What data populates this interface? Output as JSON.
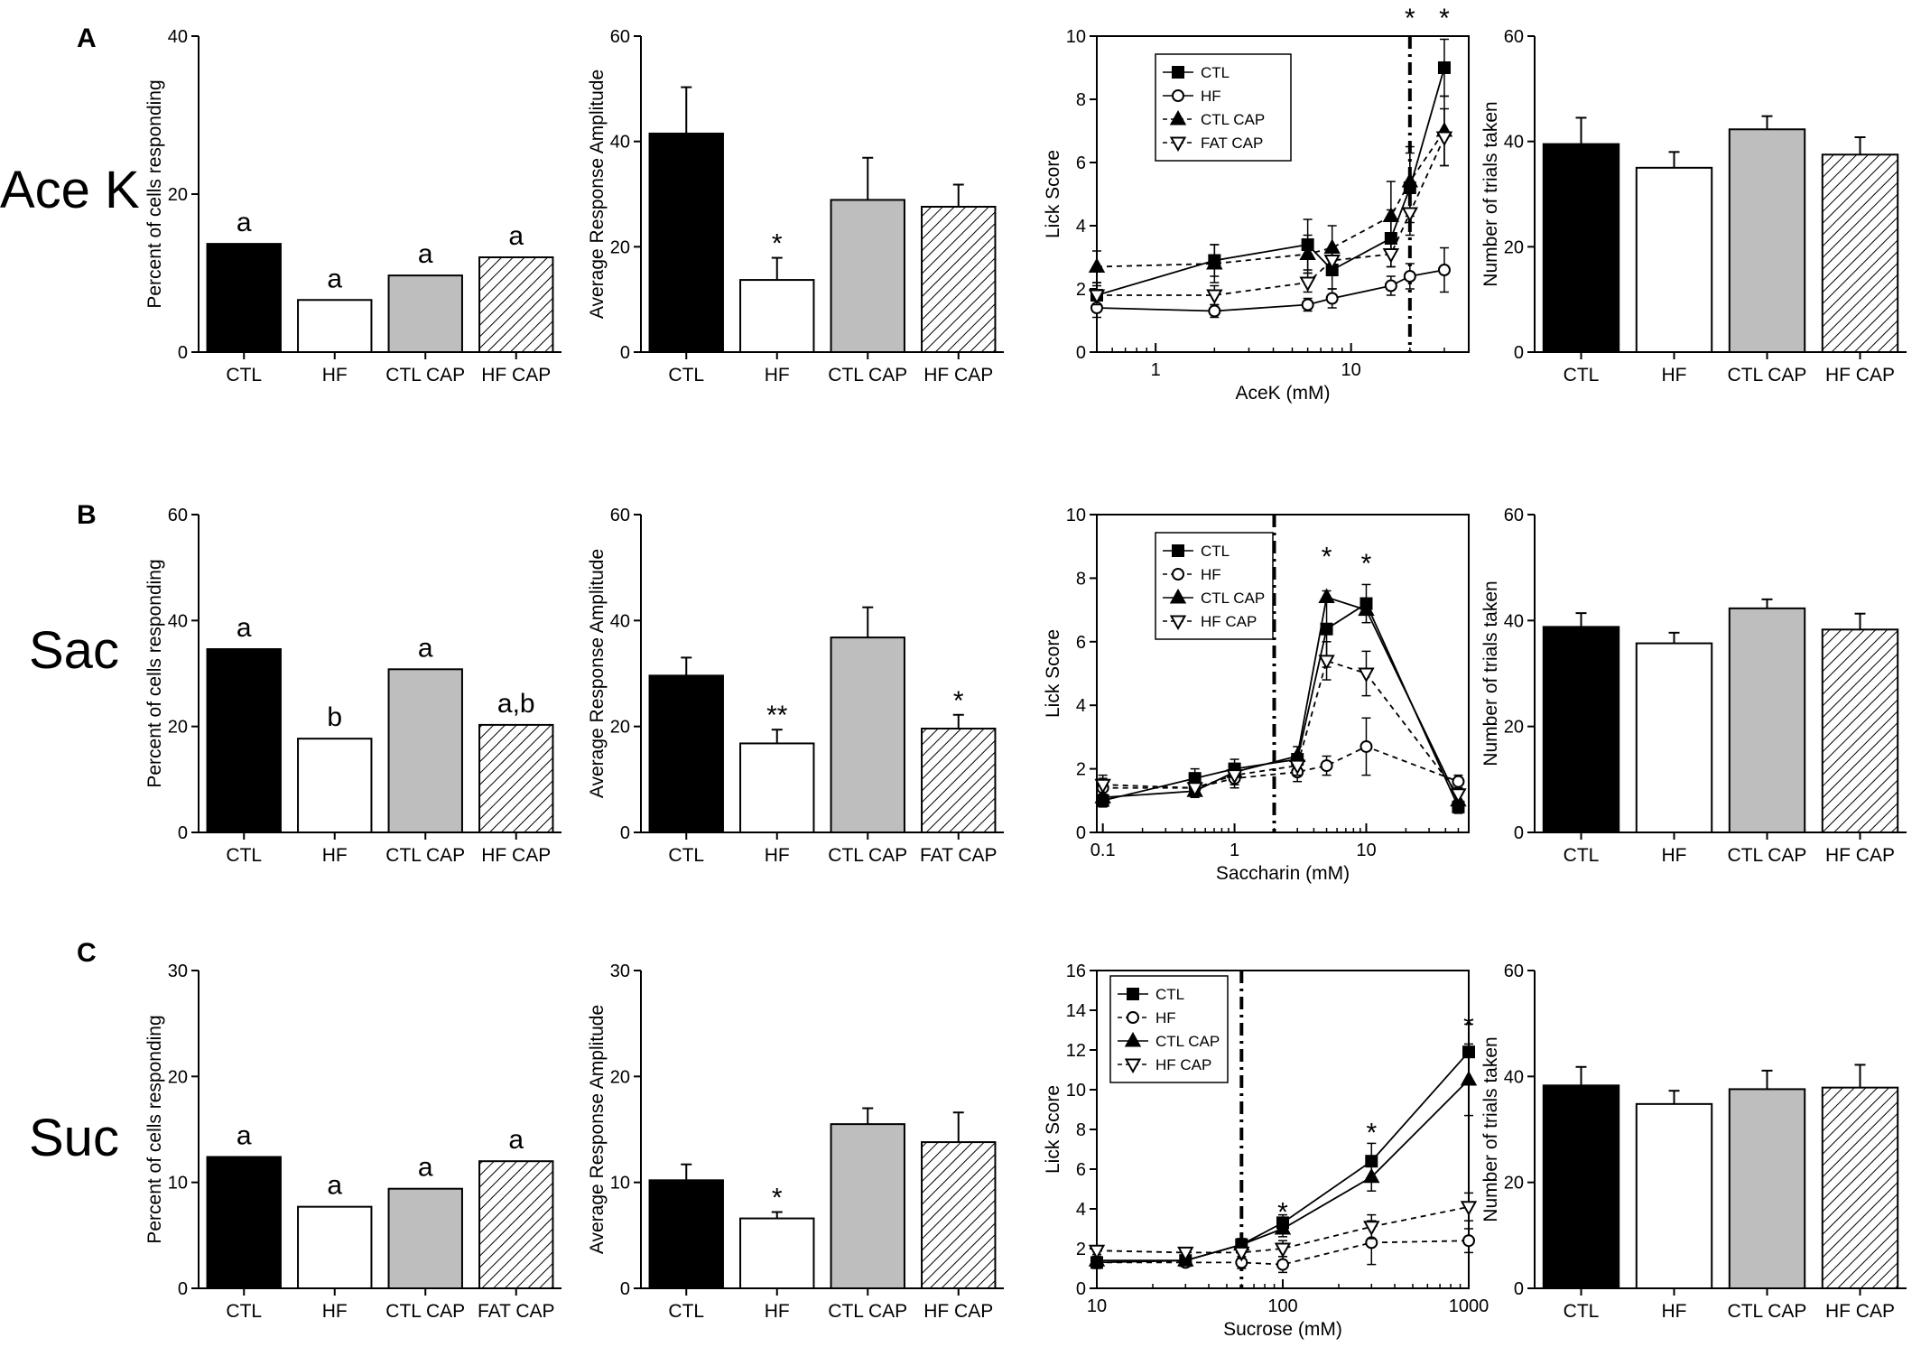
{
  "figure": {
    "rows": [
      {
        "panel_letter": "A",
        "row_label": "Ace K"
      },
      {
        "panel_letter": "B",
        "row_label": "Sac"
      },
      {
        "panel_letter": "C",
        "row_label": "Suc"
      }
    ]
  },
  "chart_data": [
    {
      "id": "A1",
      "type": "bar",
      "row": 0,
      "col": 0,
      "ylabel": "Percent of cells responding",
      "ylim": [
        0,
        40
      ],
      "yticks": [
        0,
        20,
        40
      ],
      "categories": [
        "CTL",
        "HF",
        "CTL CAP",
        "HF CAP"
      ],
      "values": [
        13.7,
        6.6,
        9.7,
        12
      ],
      "errors": null,
      "annotations": [
        "a",
        "a",
        "a",
        "a"
      ],
      "fills": [
        "black",
        "white",
        "gray",
        "hatch"
      ]
    },
    {
      "id": "A2",
      "type": "bar",
      "row": 0,
      "col": 1,
      "ylabel": "Average Response Amplitude",
      "ylim": [
        0,
        60
      ],
      "yticks": [
        0,
        20,
        40,
        60
      ],
      "categories": [
        "CTL",
        "HF",
        "CTL CAP",
        "HF CAP"
      ],
      "values": [
        41.5,
        13.7,
        28.9,
        27.6
      ],
      "errors": [
        8.8,
        4.2,
        8,
        4.2
      ],
      "annotations": [
        "",
        "*",
        "",
        ""
      ],
      "fills": [
        "black",
        "white",
        "gray",
        "hatch"
      ]
    },
    {
      "id": "A3",
      "type": "line",
      "row": 0,
      "col": 2,
      "xscale": "log",
      "xlim": [
        0.5,
        40
      ],
      "xticks": [
        1,
        10
      ],
      "xlabel": "AceK (mM)",
      "ylabel": "Lick Score",
      "ylim": [
        0,
        10
      ],
      "yticks": [
        0,
        2,
        4,
        6,
        8,
        10
      ],
      "vline": 20,
      "stars": [
        {
          "x": 20,
          "y": 10.8
        },
        {
          "x": 30,
          "y": 10.8
        }
      ],
      "series": [
        {
          "name": "CTL",
          "marker": "square",
          "filled": true,
          "dashed": false,
          "x": [
            0.5,
            2,
            6,
            8,
            16,
            20,
            30
          ],
          "y": [
            1.8,
            2.9,
            3.4,
            2.6,
            3.6,
            5.2,
            9
          ],
          "err": [
            0.4,
            0.5,
            0.8,
            0.6,
            0.9,
            1.1,
            0.9
          ]
        },
        {
          "name": "HF",
          "marker": "circle",
          "filled": false,
          "dashed": false,
          "x": [
            0.5,
            2,
            6,
            8,
            16,
            20,
            30
          ],
          "y": [
            1.4,
            1.3,
            1.5,
            1.7,
            2.1,
            2.4,
            2.6
          ],
          "err": [
            0.3,
            0.2,
            0.2,
            0.3,
            0.3,
            0.4,
            0.7
          ]
        },
        {
          "name": "CTL CAP",
          "marker": "triangle",
          "filled": true,
          "dashed": true,
          "x": [
            0.5,
            2,
            6,
            8,
            16,
            20,
            30
          ],
          "y": [
            2.7,
            2.8,
            3.1,
            3.3,
            4.3,
            5.4,
            7
          ],
          "err": [
            0.5,
            0.6,
            0.6,
            0.7,
            1.1,
            1.1,
            1.1
          ]
        },
        {
          "name": "FAT CAP",
          "marker": "triangle-down",
          "filled": false,
          "dashed": true,
          "x": [
            0.5,
            2,
            6,
            8,
            16,
            20,
            30
          ],
          "y": [
            1.8,
            1.8,
            2.2,
            2.9,
            3.1,
            4.4,
            6.8
          ],
          "err": [
            0.3,
            0.3,
            0.3,
            0.3,
            0.4,
            0.7,
            0.9
          ]
        }
      ]
    },
    {
      "id": "A4",
      "type": "bar",
      "row": 0,
      "col": 3,
      "ylabel": "Number of trials taken",
      "ylim": [
        0,
        60
      ],
      "yticks": [
        0,
        20,
        40,
        60
      ],
      "categories": [
        "CTL",
        "HF",
        "CTL CAP",
        "HF CAP"
      ],
      "values": [
        39.5,
        35,
        42.3,
        37.5
      ],
      "errors": [
        5,
        3,
        2.5,
        3.3
      ],
      "annotations": [
        "",
        "",
        "",
        ""
      ],
      "fills": [
        "black",
        "white",
        "gray",
        "hatch"
      ]
    },
    {
      "id": "B1",
      "type": "bar",
      "row": 1,
      "col": 0,
      "ylabel": "Percent of cells responding",
      "ylim": [
        0,
        60
      ],
      "yticks": [
        0,
        20,
        40,
        60
      ],
      "categories": [
        "CTL",
        "HF",
        "CTL CAP",
        "HF CAP"
      ],
      "values": [
        34.6,
        17.7,
        30.8,
        20.3
      ],
      "errors": null,
      "annotations": [
        "a",
        "b",
        "a",
        "a,b"
      ],
      "fills": [
        "black",
        "white",
        "gray",
        "hatch"
      ]
    },
    {
      "id": "B2",
      "type": "bar",
      "row": 1,
      "col": 1,
      "ylabel": "Average Response Amplitude",
      "ylim": [
        0,
        60
      ],
      "yticks": [
        0,
        20,
        40,
        60
      ],
      "categories": [
        "CTL",
        "HF",
        "CTL CAP",
        "FAT CAP"
      ],
      "values": [
        29.6,
        16.8,
        36.8,
        19.6
      ],
      "errors": [
        3.4,
        2.6,
        5.7,
        2.6
      ],
      "annotations": [
        "",
        "**",
        "",
        "*"
      ],
      "fills": [
        "black",
        "white",
        "gray",
        "hatch"
      ]
    },
    {
      "id": "B3",
      "type": "line",
      "row": 1,
      "col": 2,
      "xscale": "log",
      "xlim": [
        0.09,
        60
      ],
      "xticks": [
        0.1,
        1,
        10
      ],
      "xlabel": "Saccharin (mM)",
      "ylabel": "Lick Score",
      "ylim": [
        0,
        10
      ],
      "yticks": [
        0,
        2,
        4,
        6,
        8,
        10
      ],
      "vline": 2,
      "stars": [
        {
          "x": 5,
          "y": 8.9
        },
        {
          "x": 10,
          "y": 8.7
        }
      ],
      "series": [
        {
          "name": "CTL",
          "marker": "square",
          "filled": true,
          "dashed": false,
          "x": [
            0.1,
            0.5,
            1,
            3,
            5,
            10,
            50
          ],
          "y": [
            1,
            1.7,
            2,
            2.3,
            6.4,
            7.2,
            0.8
          ],
          "err": [
            0.2,
            0.3,
            0.3,
            0.4,
            1.2,
            0.6,
            0.2
          ]
        },
        {
          "name": "HF",
          "marker": "circle",
          "filled": false,
          "dashed": true,
          "x": [
            0.1,
            0.5,
            1,
            3,
            5,
            10,
            50
          ],
          "y": [
            1.4,
            1.4,
            1.7,
            1.9,
            2.1,
            2.7,
            1.6
          ],
          "err": [
            0.3,
            0.3,
            0.3,
            0.3,
            0.3,
            0.9,
            0.2
          ]
        },
        {
          "name": "CTL CAP",
          "marker": "triangle",
          "filled": true,
          "dashed": false,
          "x": [
            0.1,
            0.5,
            1,
            3,
            5,
            10,
            50
          ],
          "y": [
            1.1,
            1.3,
            1.9,
            2.4,
            7.4,
            7,
            1
          ]
        },
        {
          "name": "HF CAP",
          "marker": "triangle-down",
          "filled": false,
          "dashed": true,
          "x": [
            0.1,
            0.5,
            1,
            3,
            5,
            10,
            50
          ],
          "y": [
            1.5,
            1.4,
            1.8,
            2.1,
            5.4,
            5,
            1.2
          ],
          "err": [
            0.3,
            0.2,
            0.3,
            0.3,
            0.6,
            0.7,
            0.2
          ]
        }
      ]
    },
    {
      "id": "B4",
      "type": "bar",
      "row": 1,
      "col": 3,
      "ylabel": "Number of trials taken",
      "ylim": [
        0,
        60
      ],
      "yticks": [
        0,
        20,
        40,
        60
      ],
      "categories": [
        "CTL",
        "HF",
        "CTL CAP",
        "HF CAP"
      ],
      "values": [
        38.8,
        35.7,
        42.3,
        38.3
      ],
      "errors": [
        2.6,
        2,
        1.7,
        3
      ],
      "annotations": [
        "",
        "",
        "",
        ""
      ],
      "fills": [
        "black",
        "white",
        "gray",
        "hatch"
      ]
    },
    {
      "id": "C1",
      "type": "bar",
      "row": 2,
      "col": 0,
      "ylabel": "Percent of cells responding",
      "ylim": [
        0,
        30
      ],
      "yticks": [
        0,
        10,
        20,
        30
      ],
      "categories": [
        "CTL",
        "HF",
        "CTL CAP",
        "FAT CAP"
      ],
      "values": [
        12.4,
        7.7,
        9.4,
        12
      ],
      "errors": null,
      "annotations": [
        "a",
        "a",
        "a",
        "a"
      ],
      "fills": [
        "black",
        "white",
        "gray",
        "hatch"
      ]
    },
    {
      "id": "C2",
      "type": "bar",
      "row": 2,
      "col": 1,
      "ylabel": "Average Response Amplitude",
      "ylim": [
        0,
        30
      ],
      "yticks": [
        0,
        10,
        20,
        30
      ],
      "categories": [
        "CTL",
        "HF",
        "CTL CAP",
        "HF CAP"
      ],
      "values": [
        10.2,
        6.6,
        15.5,
        13.8
      ],
      "errors": [
        1.5,
        0.6,
        1.5,
        2.8
      ],
      "annotations": [
        "",
        "*",
        "",
        ""
      ],
      "fills": [
        "black",
        "white",
        "gray",
        "hatch"
      ]
    },
    {
      "id": "C3",
      "type": "line",
      "row": 2,
      "col": 2,
      "xscale": "log",
      "xlim": [
        10,
        1000
      ],
      "xticks": [
        10,
        100,
        1000
      ],
      "xlabel": "Sucrose (mM)",
      "ylabel": "Lick Score",
      "ylim": [
        0,
        16
      ],
      "yticks": [
        0,
        2,
        4,
        6,
        8,
        10,
        12,
        14,
        16
      ],
      "vline": 60,
      "stars": [
        {
          "x": 100,
          "y": 4.2
        },
        {
          "x": 300,
          "y": 8.2
        },
        {
          "x": 1000,
          "y": 13.6
        }
      ],
      "series": [
        {
          "name": "CTL",
          "marker": "square",
          "filled": true,
          "dashed": false,
          "x": [
            10,
            30,
            60,
            100,
            300,
            1000
          ],
          "y": [
            1.3,
            1.4,
            2.2,
            3.3,
            6.4,
            11.9
          ],
          "err": [
            0.3,
            0.2,
            0.3,
            0.4,
            0.9,
            1.4
          ]
        },
        {
          "name": "HF",
          "marker": "circle",
          "filled": false,
          "dashed": true,
          "x": [
            10,
            30,
            60,
            100,
            300,
            1000
          ],
          "y": [
            1.3,
            1.3,
            1.3,
            1.2,
            2.3,
            2.4
          ],
          "err": [
            0.2,
            0.2,
            0.3,
            0.4,
            1.1,
            0.6
          ]
        },
        {
          "name": "CTL CAP",
          "marker": "triangle",
          "filled": true,
          "dashed": false,
          "x": [
            10,
            30,
            60,
            100,
            300,
            1000
          ],
          "y": [
            1.4,
            1.4,
            2.2,
            3,
            5.6,
            10.5
          ],
          "err": [
            0.3,
            0.2,
            0.3,
            0.4,
            0.7,
            1.8
          ]
        },
        {
          "name": "HF CAP",
          "marker": "triangle-down",
          "filled": false,
          "dashed": true,
          "x": [
            10,
            30,
            60,
            100,
            300,
            1000
          ],
          "y": [
            1.9,
            1.8,
            1.8,
            2,
            3.1,
            4.1
          ],
          "err": [
            0.2,
            0.2,
            0.3,
            0.4,
            0.6,
            0.7
          ]
        }
      ]
    },
    {
      "id": "C4",
      "type": "bar",
      "row": 2,
      "col": 3,
      "ylabel": "Number of trials taken",
      "ylim": [
        0,
        60
      ],
      "yticks": [
        0,
        20,
        40,
        60
      ],
      "categories": [
        "CTL",
        "HF",
        "CTL CAP",
        "HF CAP"
      ],
      "values": [
        38.3,
        34.8,
        37.6,
        37.9
      ],
      "errors": [
        3.5,
        2.5,
        3.5,
        4.3
      ],
      "annotations": [
        "",
        "",
        "",
        ""
      ],
      "fills": [
        "black",
        "white",
        "gray",
        "hatch"
      ]
    }
  ]
}
